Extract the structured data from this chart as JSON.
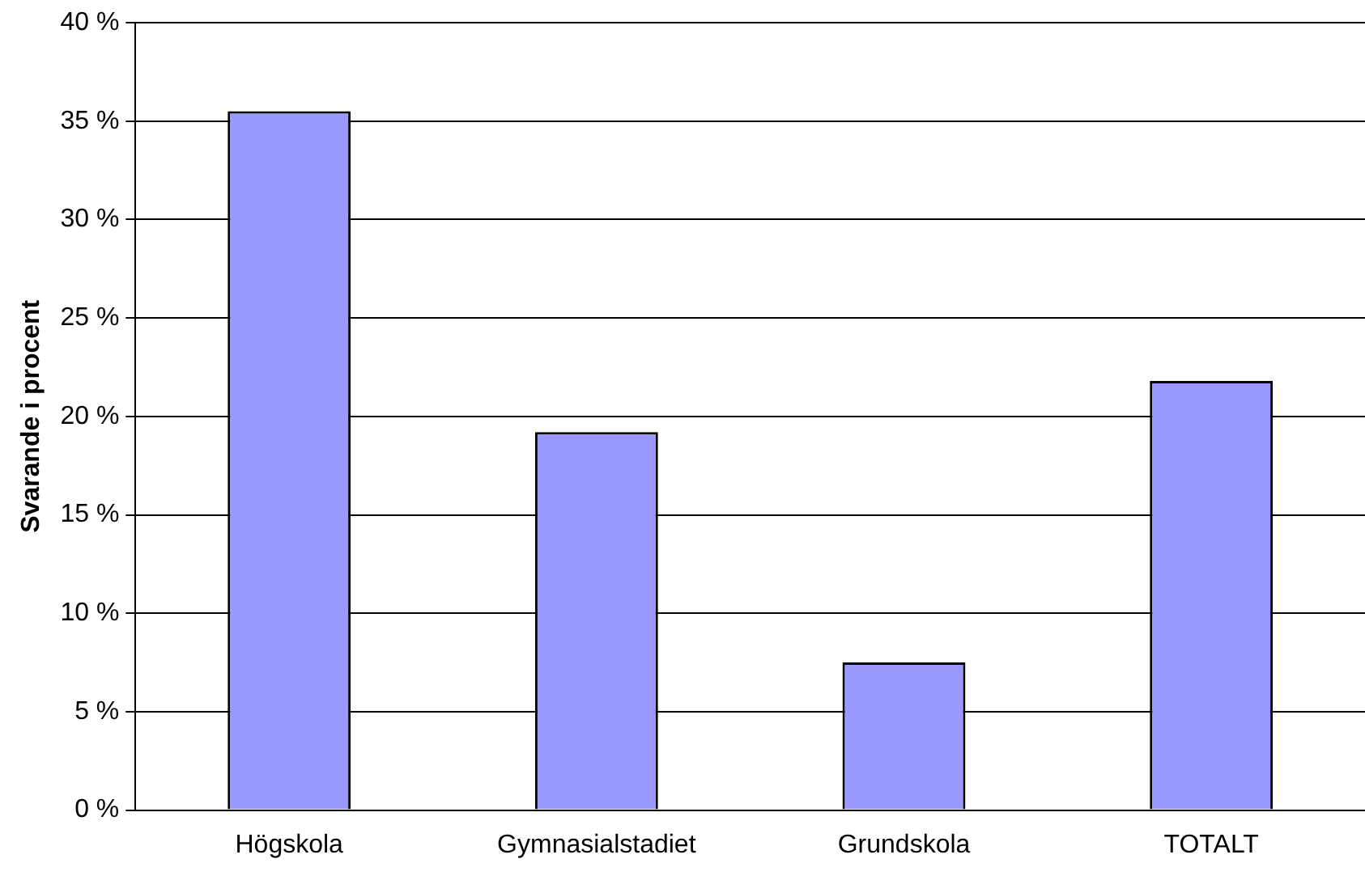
{
  "chart_data": {
    "type": "bar",
    "ylabel": "Svarande i procent",
    "categories": [
      "Högskola",
      "Gymnasialstadiet",
      "Grundskola",
      "TOTALT"
    ],
    "values": [
      35.5,
      19.2,
      7.5,
      21.8
    ],
    "color": "#9999ff",
    "ylim": [
      0,
      40
    ],
    "yticks": [
      {
        "value": 0,
        "label": "0 %"
      },
      {
        "value": 5,
        "label": "5 %"
      },
      {
        "value": 10,
        "label": "10 %"
      },
      {
        "value": 15,
        "label": "15 %"
      },
      {
        "value": 20,
        "label": "20 %"
      },
      {
        "value": 25,
        "label": "25 %"
      },
      {
        "value": 30,
        "label": "30 %"
      },
      {
        "value": 35,
        "label": "35 %"
      },
      {
        "value": 40,
        "label": "40 %"
      }
    ],
    "grid": "y",
    "legend": false
  }
}
